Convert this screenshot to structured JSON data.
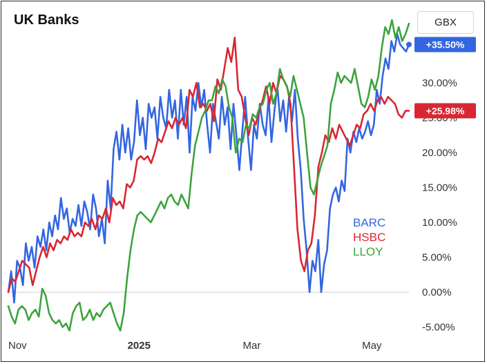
{
  "chart_data": {
    "type": "line",
    "title": "UK Banks",
    "currency": "GBX",
    "ylim": [
      -5,
      40
    ],
    "y_ticks": [
      -5,
      0,
      5,
      10,
      15,
      20,
      25,
      30
    ],
    "y_tick_labels": [
      "-5.00%",
      "0.00%",
      "5.00%",
      "10.00%",
      "15.00%",
      "20.00%",
      "25.00%",
      "30.00%"
    ],
    "x_ticks": [
      {
        "label": "Nov",
        "t": 0,
        "bold": false
      },
      {
        "label": "2025",
        "t": 61,
        "bold": true
      },
      {
        "label": "Mar",
        "t": 120,
        "bold": false
      },
      {
        "label": "May",
        "t": 181,
        "bold": false
      }
    ],
    "t_max": 205,
    "series": [
      {
        "name": "BARC",
        "color": "#3366e0",
        "last_label": "+35.50%",
        "values": [
          0.0,
          3.0,
          -1.5,
          4.5,
          3.5,
          1.0,
          7.0,
          4.5,
          6.5,
          3.5,
          8.0,
          6.5,
          9.0,
          6.0,
          10.0,
          8.0,
          11.0,
          9.0,
          13.5,
          10.5,
          12.0,
          8.5,
          10.5,
          9.5,
          12.5,
          9.5,
          13.0,
          11.5,
          9.0,
          14.0,
          12.0,
          8.0,
          10.5,
          7.0,
          16.0,
          12.0,
          20.5,
          23.0,
          19.0,
          24.0,
          20.0,
          23.5,
          19.0,
          21.5,
          27.5,
          22.5,
          25.0,
          20.5,
          27.0,
          25.0,
          26.5,
          22.0,
          28.0,
          25.0,
          23.5,
          29.0,
          25.0,
          27.5,
          22.0,
          29.0,
          24.0,
          28.0,
          20.0,
          28.0,
          26.0,
          30.0,
          26.5,
          29.0,
          24.0,
          20.0,
          27.0,
          24.5,
          22.0,
          28.0,
          24.0,
          26.5,
          20.5,
          27.0,
          22.5,
          17.5,
          23.0,
          28.0,
          22.0,
          17.5,
          24.0,
          22.0,
          27.0,
          24.0,
          22.5,
          28.0,
          21.5,
          26.0,
          29.5,
          24.5,
          27.5,
          23.0,
          28.0,
          24.5,
          29.0,
          22.0,
          17.5,
          10.5,
          6.0,
          0.0,
          4.5,
          3.0,
          7.5,
          0.0,
          4.0,
          6.0,
          12.0,
          14.0,
          15.0,
          13.0,
          16.0,
          14.5,
          22.0,
          20.0,
          23.0,
          21.5,
          23.5,
          22.0,
          23.0,
          24.5,
          22.5,
          24.0,
          29.0,
          27.0,
          31.0,
          33.5,
          32.0,
          36.0,
          34.5,
          37.0,
          35.5,
          35.0,
          34.5,
          35.5
        ]
      },
      {
        "name": "HSBC",
        "color": "#d92633",
        "last_label": "+25.98%",
        "values": [
          0.0,
          2.0,
          1.5,
          3.0,
          4.5,
          4.0,
          3.5,
          1.0,
          3.0,
          5.0,
          6.5,
          5.0,
          7.0,
          6.0,
          7.5,
          7.0,
          8.0,
          7.5,
          9.0,
          8.0,
          8.5,
          8.0,
          10.0,
          9.5,
          10.5,
          9.0,
          11.0,
          10.5,
          12.0,
          10.0,
          13.5,
          12.5,
          13.0,
          12.0,
          15.5,
          15.0,
          16.0,
          19.0,
          19.5,
          19.0,
          19.5,
          18.5,
          20.0,
          22.0,
          21.5,
          23.0,
          24.5,
          23.5,
          25.0,
          24.0,
          25.0,
          23.5,
          29.0,
          28.0,
          30.0,
          26.5,
          27.0,
          26.0,
          27.0,
          24.5,
          30.5,
          29.0,
          32.0,
          35.0,
          33.0,
          36.5,
          29.0,
          28.0,
          25.0,
          22.5,
          25.0,
          24.0,
          26.0,
          27.5,
          29.5,
          27.0,
          30.0,
          28.5,
          31.0,
          30.5,
          29.5,
          27.0,
          18.0,
          9.0,
          4.5,
          3.0,
          6.0,
          7.0,
          11.0,
          18.0,
          20.0,
          22.5,
          21.5,
          23.5,
          22.0,
          24.0,
          23.0,
          22.0,
          21.0,
          22.5,
          24.0,
          23.5,
          25.5,
          26.0,
          27.0,
          26.0,
          27.5,
          28.0,
          27.0,
          28.0,
          27.5,
          27.0,
          25.5,
          25.0,
          26.0,
          26.0
        ]
      },
      {
        "name": "LLOY",
        "color": "#3da33d",
        "last_label": "",
        "values": [
          -2.0,
          -3.5,
          -4.5,
          -2.5,
          -2.0,
          -2.5,
          -4.0,
          -3.0,
          -2.5,
          -3.5,
          0.5,
          -0.5,
          -3.0,
          -4.0,
          -4.5,
          -4.0,
          -5.0,
          -4.5,
          -5.5,
          -3.0,
          -2.0,
          -1.5,
          -4.0,
          -3.5,
          -2.5,
          -4.0,
          -3.0,
          -3.5,
          -2.5,
          -2.0,
          -1.5,
          -3.0,
          -4.5,
          -5.5,
          -3.0,
          2.0,
          6.0,
          9.0,
          11.0,
          11.5,
          11.0,
          10.5,
          10.0,
          11.0,
          12.0,
          13.0,
          12.0,
          13.5,
          14.0,
          13.0,
          12.5,
          14.0,
          13.0,
          12.0,
          17.0,
          21.0,
          23.0,
          25.0,
          26.0,
          27.5,
          27.5,
          29.5,
          28.5,
          30.5,
          29.5,
          26.5,
          25.0,
          20.0,
          22.0,
          21.5,
          24.0,
          23.5,
          25.5,
          25.0,
          26.5,
          27.0,
          29.0,
          30.0,
          27.0,
          28.5,
          32.0,
          30.5,
          29.5,
          28.0,
          31.0,
          29.0,
          27.0,
          25.0,
          20.0,
          15.0,
          14.0,
          16.0,
          18.0,
          19.5,
          21.0,
          27.0,
          29.0,
          31.5,
          30.0,
          31.0,
          30.5,
          30.0,
          32.0,
          29.5,
          27.0,
          26.5,
          28.0,
          30.5,
          29.0,
          31.0,
          35.0,
          38.0,
          37.0,
          39.0,
          36.5,
          38.0,
          36.0,
          37.0,
          38.5
        ]
      }
    ]
  }
}
